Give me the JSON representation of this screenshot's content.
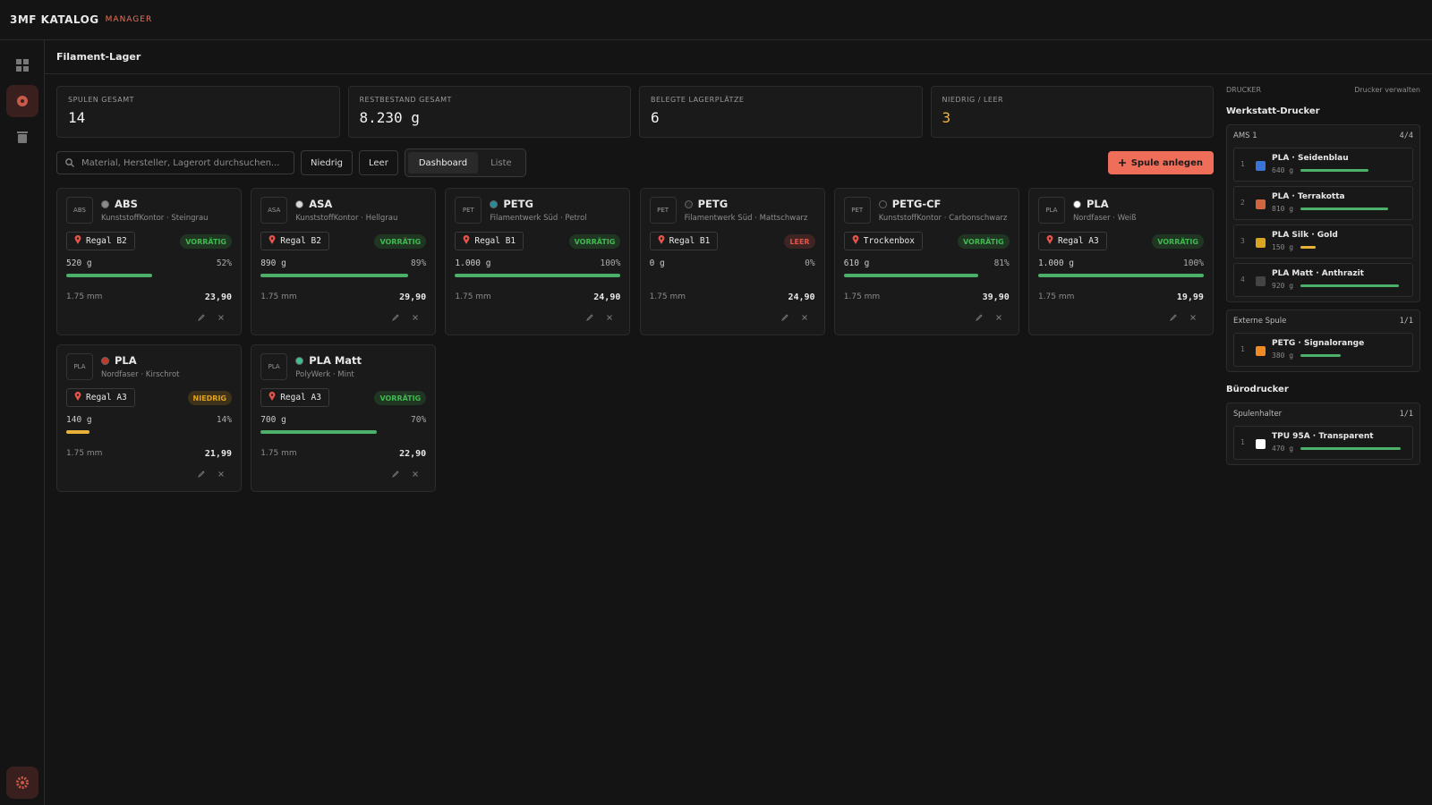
{
  "app": {
    "brand": "3MF KATALOG",
    "brand_sub": "MANAGER"
  },
  "page_title": "Filament-Lager",
  "stats": [
    {
      "label": "SPULEN GESAMT",
      "value": "14",
      "color": "#f2f2f2"
    },
    {
      "label": "RESTBESTAND GESAMT",
      "value": "8.230 g",
      "color": "#f2f2f2"
    },
    {
      "label": "BELEGTE LAGERPLÄTZE",
      "value": "6",
      "color": "#f2f2f2"
    },
    {
      "label": "NIEDRIG / LEER",
      "value": "3",
      "color": "#f0b43c"
    }
  ],
  "toolbar": {
    "search_placeholder": "Material, Hersteller, Lagerort durchsuchen...",
    "filters": [
      "Niedrig",
      "Leer"
    ],
    "views": [
      "Dashboard",
      "Liste"
    ],
    "add_button": "Spule anlegen"
  },
  "spools": [
    {
      "badge": "ABS",
      "material": "ABS",
      "color": "#8a8a8a",
      "maker": "KunststoffKontor · Steingrau",
      "location": "Regal B2",
      "status": "VORRÄTIG",
      "status_color": "#3fb950",
      "weight": "520 g",
      "fill": {
        "value": 52,
        "label": "52%"
      },
      "bar_color": "#4caf6a",
      "diameter": "1.75 mm",
      "price": "23,90"
    },
    {
      "badge": "ASA",
      "material": "ASA",
      "color": "#d9d9d9",
      "maker": "KunststoffKontor · Hellgrau",
      "location": "Regal B2",
      "status": "VORRÄTIG",
      "status_color": "#3fb950",
      "weight": "890 g",
      "fill": {
        "value": 89,
        "label": "89%"
      },
      "bar_color": "#4caf6a",
      "diameter": "1.75 mm",
      "price": "29,90"
    },
    {
      "badge": "PET",
      "material": "PETG",
      "color": "#2a8a9a",
      "maker": "Filamentwerk Süd · Petrol",
      "location": "Regal B1",
      "status": "VORRÄTIG",
      "status_color": "#3fb950",
      "weight": "1.000 g",
      "fill": {
        "value": 100,
        "label": "100%"
      },
      "bar_color": "#4caf6a",
      "diameter": "1.75 mm",
      "price": "24,90"
    },
    {
      "badge": "PET",
      "material": "PETG",
      "color": "#262626",
      "maker": "Filamentwerk Süd · Mattschwarz",
      "location": "Regal B1",
      "status": "LEER",
      "status_color": "#e5534b",
      "weight": "0 g",
      "fill": {
        "value": 0,
        "label": "0%"
      },
      "bar_color": "#4caf6a",
      "diameter": "1.75 mm",
      "price": "24,90"
    },
    {
      "badge": "PET",
      "material": "PETG-CF",
      "color": "#1a1a1a",
      "maker": "KunststoffKontor · Carbonschwarz",
      "location": "Trockenbox",
      "status": "VORRÄTIG",
      "status_color": "#3fb950",
      "weight": "610 g",
      "fill": {
        "value": 81,
        "label": "81%"
      },
      "bar_color": "#4caf6a",
      "diameter": "1.75 mm",
      "price": "39,90"
    },
    {
      "badge": "PLA",
      "material": "PLA",
      "color": "#ffffff",
      "maker": "Nordfaser · Weiß",
      "location": "Regal A3",
      "status": "VORRÄTIG",
      "status_color": "#3fb950",
      "weight": "1.000 g",
      "fill": {
        "value": 100,
        "label": "100%"
      },
      "bar_color": "#4caf6a",
      "diameter": "1.75 mm",
      "price": "19,99"
    },
    {
      "badge": "PLA",
      "material": "PLA",
      "color": "#c0392b",
      "maker": "Nordfaser · Kirschrot",
      "location": "Regal A3",
      "status": "NIEDRIG",
      "status_color": "#e3a21a",
      "weight": "140 g",
      "fill": {
        "value": 14,
        "label": "14%"
      },
      "bar_color": "#e8b23a",
      "diameter": "1.75 mm",
      "price": "21,99"
    },
    {
      "badge": "PLA",
      "material": "PLA Matt",
      "color": "#3fbf8f",
      "maker": "PolyWerk · Mint",
      "location": "Regal A3",
      "status": "VORRÄTIG",
      "status_color": "#3fb950",
      "weight": "700 g",
      "fill": {
        "value": 70,
        "label": "70%"
      },
      "bar_color": "#4caf6a",
      "diameter": "1.75 mm",
      "price": "22,90"
    }
  ],
  "printers_panel": {
    "heading": "DRUCKER",
    "manage": "Drucker verwalten",
    "printers": [
      {
        "name": "Werkstatt-Drucker",
        "units": [
          {
            "name": "AMS 1",
            "count": "4/4",
            "slots": [
              {
                "index": "1",
                "name": "PLA · Seidenblau",
                "color": "#3b74d8",
                "weight": "640 g",
                "level": 62,
                "bar_color": "#4caf6a"
              },
              {
                "index": "2",
                "name": "PLA · Terrakotta",
                "color": "#d0663f",
                "weight": "810 g",
                "level": 80,
                "bar_color": "#4caf6a"
              },
              {
                "index": "3",
                "name": "PLA Silk · Gold",
                "color": "#d9a520",
                "weight": "150 g",
                "level": 14,
                "bar_color": "#e8b23a"
              },
              {
                "index": "4",
                "name": "PLA Matt · Anthrazit",
                "color": "#444444",
                "weight": "920 g",
                "level": 90,
                "bar_color": "#4caf6a"
              }
            ]
          },
          {
            "name": "Externe Spule",
            "count": "1/1",
            "slots": [
              {
                "index": "1",
                "name": "PETG · Signalorange",
                "color": "#f08a24",
                "weight": "380 g",
                "level": 37,
                "bar_color": "#4caf6a"
              }
            ]
          }
        ]
      },
      {
        "name": "Bürodrucker",
        "units": [
          {
            "name": "Spulenhalter",
            "count": "1/1",
            "slots": [
              {
                "index": "1",
                "name": "TPU 95A · Transparent",
                "color": "#ffffff",
                "weight": "470 g",
                "level": 92,
                "bar_color": "#4caf6a"
              }
            ]
          }
        ]
      }
    ]
  }
}
